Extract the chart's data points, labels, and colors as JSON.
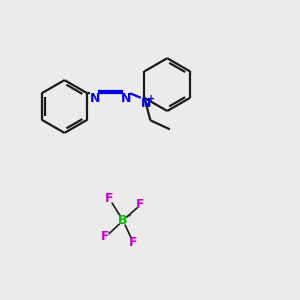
{
  "background_color": "#ebebeb",
  "bond_color": "#1a1a1a",
  "N_color": "#0000ee",
  "B_color": "#00bb00",
  "F_color": "#cc00cc",
  "figsize": [
    3.0,
    3.0
  ],
  "dpi": 100,
  "xlim": [
    0,
    10
  ],
  "ylim": [
    0,
    10
  ],
  "lw": 1.6,
  "lw_thin": 1.2,
  "font_size_N": 9,
  "font_size_B": 9,
  "font_size_F": 9
}
